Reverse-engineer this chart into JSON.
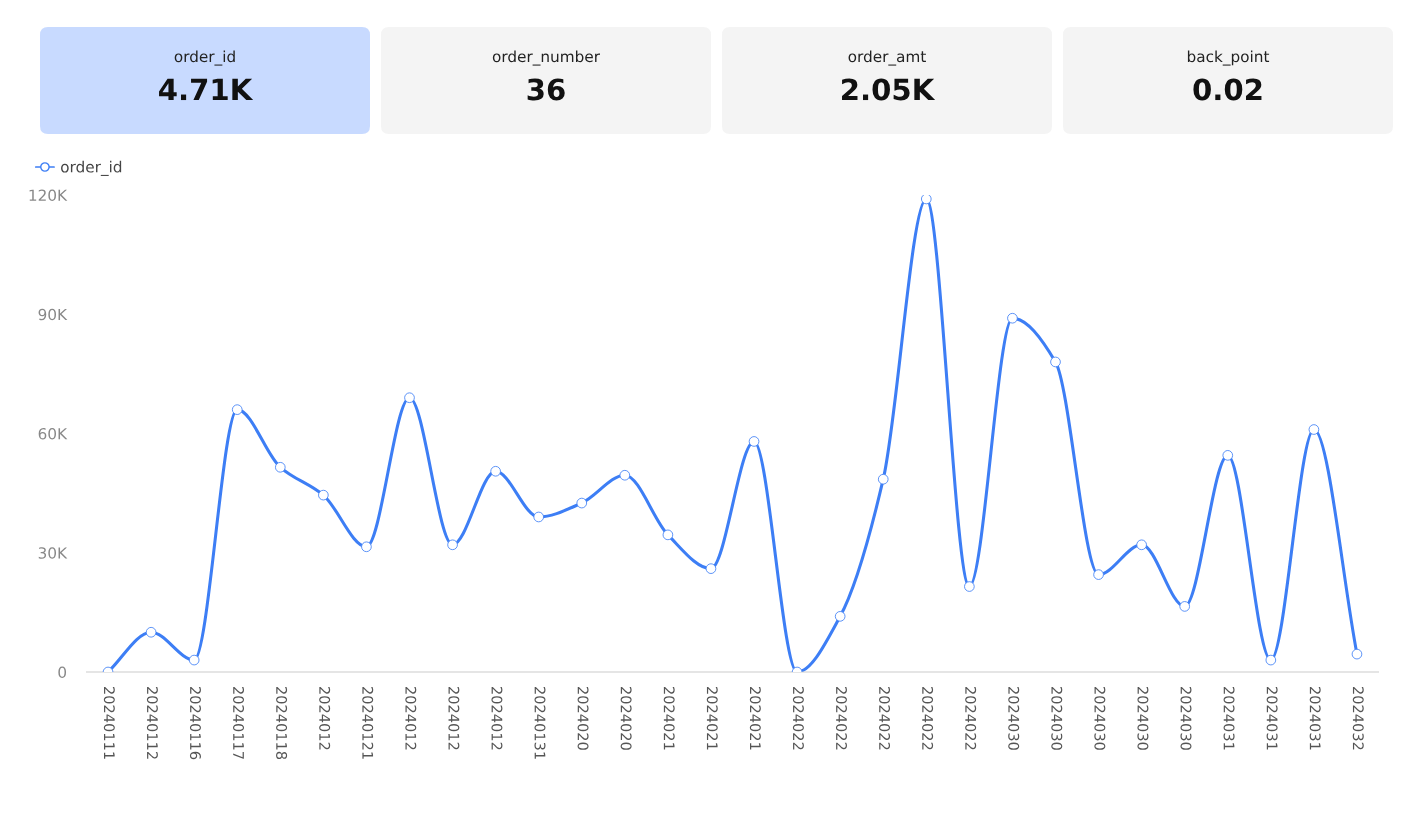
{
  "chart_data": [
    {
      "type": "other",
      "categories": [
        "order_id",
        "order_number",
        "order_amt",
        "back_point"
      ],
      "value_labels": [
        "4.71K",
        "36",
        "2.05K",
        "0.02"
      ],
      "colors": [
        "#c8daff",
        "#f4f4f4",
        "#f4f4f4",
        "#f4f4f4"
      ]
    },
    {
      "type": "line",
      "categories": [
        "20240111",
        "20240112",
        "20240116",
        "20240117",
        "20240118",
        "2024012",
        "20240121",
        "2024012",
        "2024012",
        "2024012",
        "20240131",
        "2024020",
        "2024020",
        "2024021",
        "2024021",
        "2024021",
        "2024022",
        "2024022",
        "2024022",
        "2024022",
        "2024022",
        "2024030",
        "2024030",
        "2024030",
        "2024030",
        "2024030",
        "2024031",
        "2024031",
        "2024031",
        "2024032"
      ],
      "series": [
        {
          "name": "order_id",
          "color": "#3d7ef5",
          "values": [
            0,
            10000,
            3000,
            66000,
            51500,
            44500,
            31500,
            69000,
            32000,
            50500,
            39000,
            42500,
            49500,
            34500,
            26000,
            58000,
            0,
            14000,
            48500,
            119000,
            21500,
            89000,
            78000,
            24500,
            32000,
            16500,
            54500,
            3000,
            61000,
            4500
          ]
        }
      ],
      "ylim": [
        0,
        120000
      ],
      "yticks": [
        0,
        {
          "value": 30000,
          "label": "30K"
        },
        {
          "value": 60000,
          "label": "60K"
        },
        {
          "value": 90000,
          "label": "90K"
        },
        {
          "value": 120000,
          "label": "120K"
        }
      ],
      "marker": "circle",
      "line_style": "solid",
      "legend": "top left",
      "grid": false
    }
  ]
}
